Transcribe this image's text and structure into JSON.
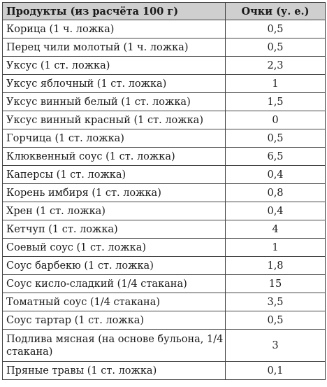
{
  "table": {
    "headers": [
      "Продукты (из расчёта 100 г)",
      "Очки (у. е.)"
    ],
    "rows": [
      {
        "product": "Корица (1 ч. ложка)",
        "points": "0,5"
      },
      {
        "product": "Перец чили молотый (1 ч. ложка)",
        "points": "0,5"
      },
      {
        "product": "Уксус (1 ст. ложка)",
        "points": "2,3"
      },
      {
        "product": "Уксус яблочный (1 ст. ложка)",
        "points": "1"
      },
      {
        "product": "Уксус винный белый (1 ст. ложка)",
        "points": "1,5"
      },
      {
        "product": "Уксус винный красный (1 ст. ложка)",
        "points": "0"
      },
      {
        "product": "Горчица (1 ст. ложка)",
        "points": "0,5"
      },
      {
        "product": "Клюквенный соус (1 ст. ложка)",
        "points": "6,5"
      },
      {
        "product": "Каперсы (1 ст. ложка)",
        "points": "0,4"
      },
      {
        "product": "Корень имбиря (1 ст. ложка)",
        "points": "0,8"
      },
      {
        "product": "Хрен (1 ст. ложка)",
        "points": "0,4"
      },
      {
        "product": "Кетчуп (1 ст. ложка)",
        "points": "4"
      },
      {
        "product": "Соевый соус (1 ст. ложка)",
        "points": "1"
      },
      {
        "product": "Соус барбекю (1 ст. ложка)",
        "points": "1,8"
      },
      {
        "product": "Соус кисло-сладкий (1/4 стакана)",
        "points": "15"
      },
      {
        "product": "Томатный соус (1/4 стакана)",
        "points": "3,5"
      },
      {
        "product": "Соус тартар (1 ст. ложка)",
        "points": "0,5"
      },
      {
        "product": "Подлива мясная (на основе бульона, 1/4 стакана)",
        "points": "3"
      },
      {
        "product": "Пряные травы (1 ст. ложка)",
        "points": "0,1"
      }
    ]
  }
}
